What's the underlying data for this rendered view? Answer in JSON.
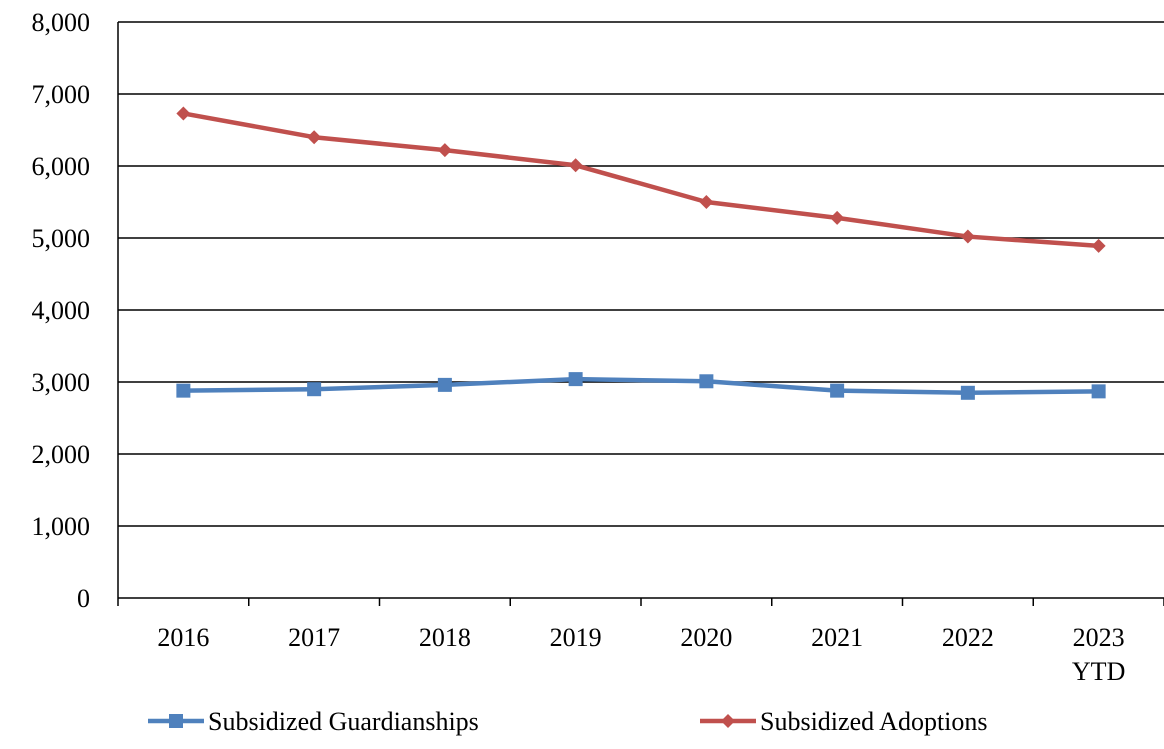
{
  "chart_data": {
    "type": "line",
    "title": "",
    "xlabel": "",
    "ylabel": "",
    "categories": [
      [
        "2016"
      ],
      [
        "2017"
      ],
      [
        "2018"
      ],
      [
        "2019"
      ],
      [
        "2020"
      ],
      [
        "2021"
      ],
      [
        "2022"
      ],
      [
        "2023",
        "YTD"
      ]
    ],
    "ylim": [
      0,
      8000
    ],
    "yticks": [
      0,
      1000,
      2000,
      3000,
      4000,
      5000,
      6000,
      7000,
      8000
    ],
    "ytick_labels": [
      "0",
      "1,000",
      "2,000",
      "3,000",
      "4,000",
      "5,000",
      "6,000",
      "7,000",
      "8,000"
    ],
    "grid": "horizontal",
    "legend_position": "bottom",
    "series": [
      {
        "name": "Subsidized Guardianships",
        "color": "#4F81BD",
        "marker": "square",
        "values": [
          2880,
          2900,
          2960,
          3040,
          3010,
          2880,
          2850,
          2870
        ]
      },
      {
        "name": "Subsidized Adoptions",
        "color": "#C0504D",
        "marker": "diamond",
        "values": [
          6730,
          6400,
          6220,
          6010,
          5500,
          5280,
          5020,
          4890
        ]
      }
    ]
  }
}
